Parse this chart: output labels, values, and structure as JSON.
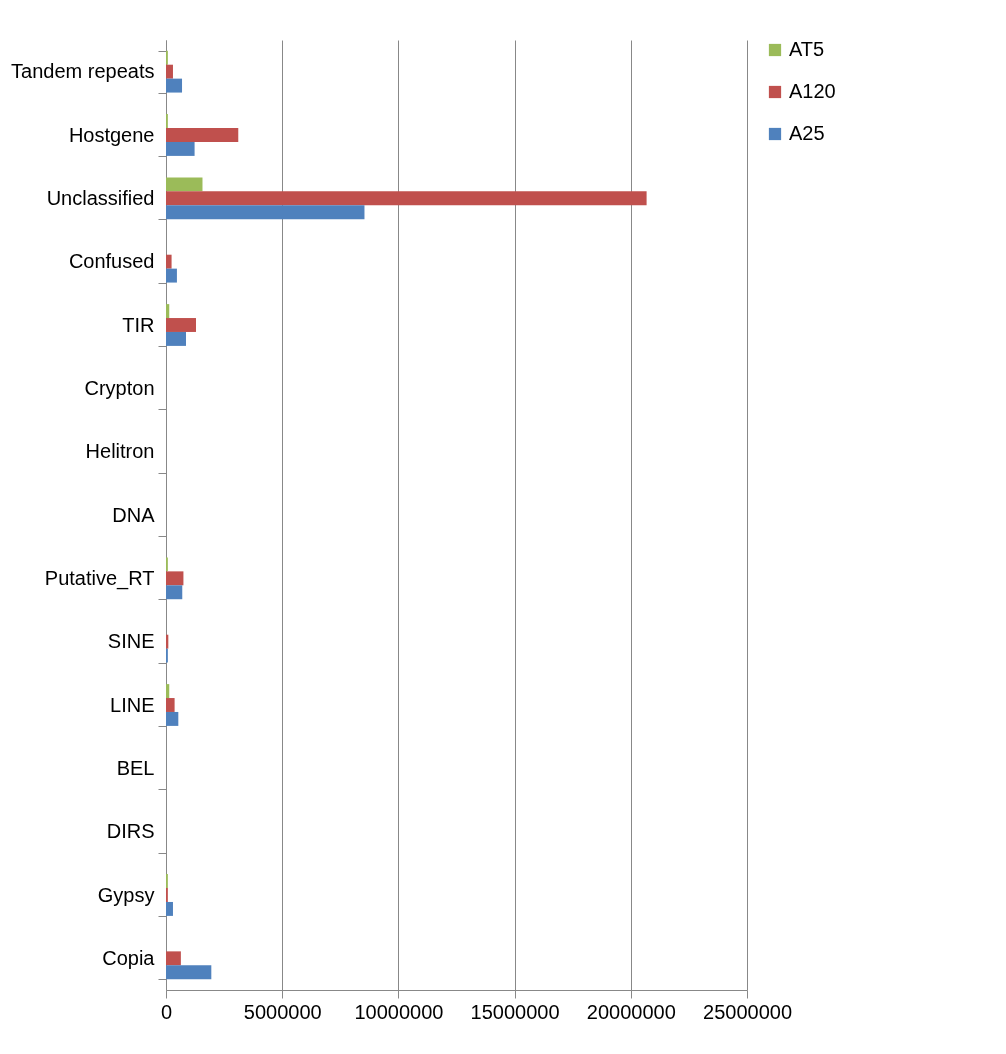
{
  "chart_data": {
    "type": "bar",
    "orientation": "horizontal",
    "categories": [
      "Tandem repeats",
      "Hostgene",
      "Unclassified",
      "Confused",
      "TIR",
      "Crypton",
      "Helitron",
      "DNA",
      "Putative_RT",
      "SINE",
      "LINE",
      "BEL",
      "DIRS",
      "Gypsy",
      "Copia"
    ],
    "series": [
      {
        "name": "AT5",
        "color": "#9bbb59",
        "values": [
          80000,
          80000,
          1570000,
          0,
          140000,
          0,
          0,
          0,
          80000,
          0,
          140000,
          0,
          0,
          80000,
          0
        ]
      },
      {
        "name": "A120",
        "color": "#c0504d",
        "values": [
          300000,
          3110000,
          20680000,
          240000,
          1290000,
          0,
          0,
          0,
          750000,
          100000,
          370000,
          0,
          0,
          80000,
          640000
        ]
      },
      {
        "name": "A25",
        "color": "#4f81bd",
        "values": [
          690000,
          1230000,
          8540000,
          470000,
          860000,
          0,
          0,
          0,
          700000,
          80000,
          530000,
          0,
          0,
          300000,
          1950000
        ]
      }
    ],
    "xlim": [
      0,
      25000000
    ],
    "xticks": [
      0,
      5000000,
      10000000,
      15000000,
      20000000,
      25000000
    ],
    "grid": "x",
    "legend": "right"
  }
}
